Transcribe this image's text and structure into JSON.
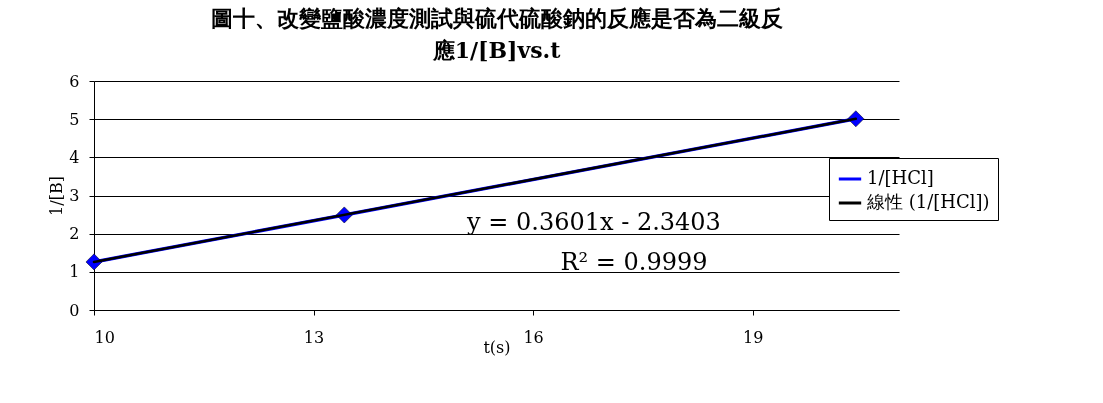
{
  "chart_data": {
    "type": "line",
    "title": "圖十、改變鹽酸濃度測試與硫代硫酸鈉的反應是否為二級反應1/[B]vs.t",
    "xlabel": "t(s)",
    "ylabel": "1/[B]",
    "series": [
      {
        "name": "1/[HCl]",
        "color": "#0000ff",
        "marker": "diamond",
        "x": [
          10,
          13.42,
          20.41
        ],
        "values": [
          1.26,
          2.49,
          5.01
        ]
      },
      {
        "name": "線性 (1/[HCl])",
        "color": "#000000",
        "type": "line",
        "marker": "none",
        "x": [
          10,
          20.41
        ],
        "values": [
          1.26,
          5.01
        ]
      }
    ],
    "xlim": [
      10,
      21
    ],
    "xticks": [
      10,
      13,
      16,
      19
    ],
    "ylim": [
      0,
      6
    ],
    "yticks": [
      0,
      1,
      2,
      3,
      4,
      5,
      6
    ],
    "grid": "y",
    "legend": "right",
    "annotations": [
      "y = 0.3601x - 2.3403",
      "R² = 0.9999"
    ]
  }
}
